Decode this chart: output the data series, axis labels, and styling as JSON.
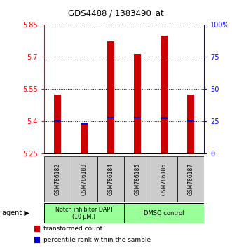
{
  "title": "GDS4488 / 1383490_at",
  "categories": [
    "GSM786182",
    "GSM786183",
    "GSM786184",
    "GSM786185",
    "GSM786186",
    "GSM786187"
  ],
  "red_values": [
    5.524,
    5.393,
    5.773,
    5.716,
    5.798,
    5.524
  ],
  "blue_values": [
    5.401,
    5.389,
    5.418,
    5.418,
    5.416,
    5.403
  ],
  "y_min": 5.25,
  "y_max": 5.85,
  "y_ticks_left": [
    5.25,
    5.4,
    5.55,
    5.7,
    5.85
  ],
  "y_ticks_right": [
    0,
    25,
    50,
    75,
    100
  ],
  "y_right_labels": [
    "0",
    "25",
    "50",
    "75",
    "100%"
  ],
  "bar_width": 0.25,
  "red_color": "#cc0000",
  "blue_color": "#0000cc",
  "group1_label": "Notch inhibitor DAPT\n(10 μM.)",
  "group2_label": "DMSO control",
  "group_bg_color": "#99ff99",
  "sample_bg_color": "#cccccc",
  "legend_red": "transformed count",
  "legend_blue": "percentile rank within the sample",
  "agent_label": "agent"
}
